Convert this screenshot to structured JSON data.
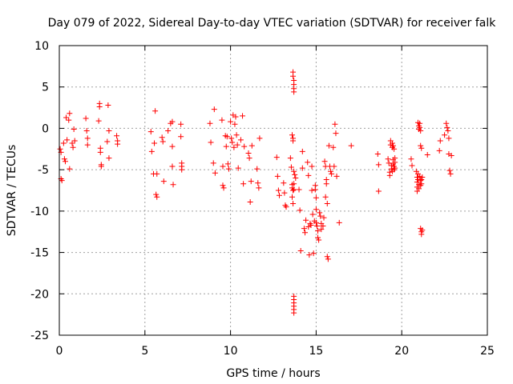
{
  "chart_data": {
    "type": "scatter",
    "title": "Day 079 of 2022, Sidereal Day-to-day VTEC variation (SDTVAR) for receiver falk",
    "xlabel": "GPS time / hours",
    "ylabel": "SDTVAR / TECUs",
    "xlim": [
      0,
      25
    ],
    "ylim": [
      -25,
      10
    ],
    "xticks": [
      0,
      5,
      10,
      15,
      20,
      25
    ],
    "yticks": [
      10,
      5,
      0,
      -5,
      -10,
      -15,
      -20,
      -25
    ],
    "xtick_labels": [
      "0",
      "5",
      "10",
      "15",
      "20",
      "25"
    ],
    "ytick_labels": [
      "10",
      "5",
      "0",
      "-5",
      "-10",
      "-15",
      "-20",
      "-25"
    ],
    "grid": true,
    "marker": "+",
    "series_color": "#ff0000",
    "points": [
      [
        0.05,
        -2.5
      ],
      [
        0.1,
        -2.9
      ],
      [
        0.1,
        -6.1
      ],
      [
        0.15,
        -6.3
      ],
      [
        0.25,
        -1.8
      ],
      [
        0.3,
        -3.7
      ],
      [
        0.35,
        -4.0
      ],
      [
        0.4,
        1.3
      ],
      [
        0.45,
        -1.4
      ],
      [
        0.55,
        1.0
      ],
      [
        0.6,
        1.8
      ],
      [
        0.6,
        -4.9
      ],
      [
        0.75,
        -1.8
      ],
      [
        0.8,
        -2.3
      ],
      [
        0.85,
        -0.1
      ],
      [
        0.9,
        -1.5
      ],
      [
        1.55,
        1.2
      ],
      [
        1.6,
        -0.3
      ],
      [
        1.65,
        -1.2
      ],
      [
        1.65,
        -2.0
      ],
      [
        2.3,
        0.9
      ],
      [
        2.35,
        2.6
      ],
      [
        2.35,
        3.0
      ],
      [
        2.4,
        -2.4
      ],
      [
        2.4,
        -2.9
      ],
      [
        2.45,
        -4.4
      ],
      [
        2.45,
        -4.6
      ],
      [
        2.8,
        -1.6
      ],
      [
        2.85,
        2.8
      ],
      [
        2.9,
        -0.3
      ],
      [
        2.9,
        -3.6
      ],
      [
        3.35,
        -0.9
      ],
      [
        3.4,
        -1.5
      ],
      [
        3.4,
        -1.9
      ],
      [
        5.35,
        -0.4
      ],
      [
        5.4,
        -2.8
      ],
      [
        5.5,
        -5.5
      ],
      [
        5.55,
        -1.8
      ],
      [
        5.6,
        2.1
      ],
      [
        5.65,
        -8.0
      ],
      [
        5.7,
        -8.3
      ],
      [
        5.7,
        -5.5
      ],
      [
        6.0,
        -1.1
      ],
      [
        6.05,
        -1.6
      ],
      [
        6.1,
        -6.4
      ],
      [
        6.35,
        -0.3
      ],
      [
        6.5,
        0.6
      ],
      [
        6.6,
        0.8
      ],
      [
        6.6,
        -2.2
      ],
      [
        6.6,
        -4.6
      ],
      [
        6.65,
        -6.8
      ],
      [
        7.1,
        0.5
      ],
      [
        7.1,
        -1.0
      ],
      [
        7.15,
        -4.2
      ],
      [
        7.15,
        -4.6
      ],
      [
        7.15,
        -5.0
      ],
      [
        8.8,
        0.6
      ],
      [
        8.85,
        -1.7
      ],
      [
        9.0,
        -4.2
      ],
      [
        9.05,
        2.3
      ],
      [
        9.1,
        -5.4
      ],
      [
        9.5,
        1.0
      ],
      [
        9.55,
        -4.6
      ],
      [
        9.55,
        -6.9
      ],
      [
        9.6,
        -7.2
      ],
      [
        9.7,
        -0.9
      ],
      [
        9.75,
        -2.2
      ],
      [
        9.8,
        -1.0
      ],
      [
        9.85,
        -4.3
      ],
      [
        9.9,
        -4.9
      ],
      [
        10.0,
        0.8
      ],
      [
        10.05,
        -1.2
      ],
      [
        10.1,
        -1.7
      ],
      [
        10.15,
        1.6
      ],
      [
        10.2,
        -2.3
      ],
      [
        10.25,
        0.5
      ],
      [
        10.3,
        1.4
      ],
      [
        10.35,
        -0.8
      ],
      [
        10.4,
        -2.0
      ],
      [
        10.45,
        -4.8
      ],
      [
        10.6,
        -1.4
      ],
      [
        10.7,
        1.5
      ],
      [
        10.75,
        -6.7
      ],
      [
        10.8,
        -2.2
      ],
      [
        11.05,
        -3.0
      ],
      [
        11.1,
        -3.6
      ],
      [
        11.15,
        -8.9
      ],
      [
        11.2,
        -6.4
      ],
      [
        11.25,
        -2.1
      ],
      [
        11.55,
        -4.9
      ],
      [
        11.6,
        -6.6
      ],
      [
        11.65,
        -7.2
      ],
      [
        11.7,
        -1.2
      ],
      [
        12.7,
        -3.5
      ],
      [
        12.75,
        -5.8
      ],
      [
        12.8,
        -7.5
      ],
      [
        12.85,
        -8.1
      ],
      [
        13.1,
        -6.6
      ],
      [
        13.15,
        -7.8
      ],
      [
        13.2,
        -9.3
      ],
      [
        13.25,
        -9.5
      ],
      [
        13.5,
        -3.6
      ],
      [
        13.55,
        -4.7
      ],
      [
        13.6,
        -6.8
      ],
      [
        13.6,
        -7.2
      ],
      [
        13.6,
        -8.3
      ],
      [
        13.65,
        -9.1
      ],
      [
        13.65,
        -7.5
      ],
      [
        13.6,
        -0.8
      ],
      [
        13.65,
        -1.2
      ],
      [
        13.65,
        -1.5
      ],
      [
        13.7,
        -5.2
      ],
      [
        13.7,
        -6.7
      ],
      [
        13.7,
        -7.4
      ],
      [
        13.7,
        -20.3
      ],
      [
        13.7,
        -20.7
      ],
      [
        13.7,
        -21.1
      ],
      [
        13.7,
        -21.5
      ],
      [
        13.7,
        -21.9
      ],
      [
        13.7,
        -22.3
      ],
      [
        13.65,
        6.8
      ],
      [
        13.65,
        6.3
      ],
      [
        13.7,
        5.8
      ],
      [
        13.7,
        5.3
      ],
      [
        13.7,
        4.8
      ],
      [
        13.7,
        4.4
      ],
      [
        13.75,
        -5.6
      ],
      [
        13.8,
        -6.0
      ],
      [
        14.0,
        -7.4
      ],
      [
        14.05,
        -9.9
      ],
      [
        14.1,
        -14.8
      ],
      [
        14.2,
        -2.8
      ],
      [
        14.2,
        -4.8
      ],
      [
        14.3,
        -12.1
      ],
      [
        14.35,
        -12.6
      ],
      [
        14.4,
        -11.1
      ],
      [
        14.5,
        -4.1
      ],
      [
        14.55,
        -5.7
      ],
      [
        14.55,
        -11.9
      ],
      [
        14.6,
        -15.3
      ],
      [
        14.65,
        -11.5
      ],
      [
        14.7,
        -11.7
      ],
      [
        14.75,
        -4.6
      ],
      [
        14.75,
        -7.5
      ],
      [
        14.8,
        -10.4
      ],
      [
        14.85,
        -15.1
      ],
      [
        14.9,
        -11.2
      ],
      [
        14.95,
        -6.9
      ],
      [
        14.95,
        -7.4
      ],
      [
        15.0,
        -8.4
      ],
      [
        15.0,
        -9.8
      ],
      [
        15.0,
        -11.4
      ],
      [
        15.05,
        -11.8
      ],
      [
        15.1,
        -12.4
      ],
      [
        15.1,
        -13.2
      ],
      [
        15.15,
        -13.5
      ],
      [
        15.2,
        -10.2
      ],
      [
        15.25,
        -10.6
      ],
      [
        15.3,
        -11.5
      ],
      [
        15.3,
        -12.2
      ],
      [
        15.4,
        -11.8
      ],
      [
        15.45,
        -10.8
      ],
      [
        15.5,
        -4.0
      ],
      [
        15.55,
        -4.6
      ],
      [
        15.55,
        -8.3
      ],
      [
        15.6,
        -6.2
      ],
      [
        15.6,
        -6.7
      ],
      [
        15.65,
        -9.1
      ],
      [
        15.65,
        -15.5
      ],
      [
        15.7,
        -15.8
      ],
      [
        15.75,
        -2.1
      ],
      [
        15.8,
        -4.6
      ],
      [
        15.85,
        -5.2
      ],
      [
        15.9,
        -5.5
      ],
      [
        16.0,
        -2.3
      ],
      [
        16.05,
        -4.6
      ],
      [
        16.1,
        0.5
      ],
      [
        16.15,
        -0.6
      ],
      [
        16.2,
        -5.8
      ],
      [
        16.35,
        -11.4
      ],
      [
        17.05,
        -2.1
      ],
      [
        18.6,
        -3.1
      ],
      [
        18.65,
        -4.4
      ],
      [
        18.65,
        -7.6
      ],
      [
        19.2,
        -3.7
      ],
      [
        19.25,
        -4.2
      ],
      [
        19.3,
        -5.3
      ],
      [
        19.3,
        -5.7
      ],
      [
        19.35,
        -1.5
      ],
      [
        19.35,
        -2.0
      ],
      [
        19.4,
        -4.5
      ],
      [
        19.4,
        -4.9
      ],
      [
        19.45,
        -5.2
      ],
      [
        19.45,
        -1.8
      ],
      [
        19.45,
        -2.3
      ],
      [
        19.5,
        -3.8
      ],
      [
        19.5,
        -4.3
      ],
      [
        19.55,
        -4.6
      ],
      [
        19.55,
        -5.0
      ],
      [
        19.5,
        -2.1
      ],
      [
        19.55,
        -2.5
      ],
      [
        19.6,
        -3.6
      ],
      [
        19.6,
        -4.1
      ],
      [
        19.6,
        -4.8
      ],
      [
        20.55,
        -3.7
      ],
      [
        20.6,
        -4.5
      ],
      [
        20.85,
        -5.2
      ],
      [
        20.9,
        -5.9
      ],
      [
        20.9,
        -6.5
      ],
      [
        20.9,
        -7.1
      ],
      [
        20.9,
        -7.6
      ],
      [
        20.95,
        -5.5
      ],
      [
        20.95,
        -6.2
      ],
      [
        21.0,
        -6.8
      ],
      [
        21.0,
        -7.3
      ],
      [
        20.95,
        0.7
      ],
      [
        21.0,
        0.3
      ],
      [
        21.0,
        -0.1
      ],
      [
        21.05,
        0.6
      ],
      [
        21.05,
        0.1
      ],
      [
        21.1,
        -0.3
      ],
      [
        21.05,
        -5.8
      ],
      [
        21.1,
        -6.3
      ],
      [
        21.1,
        -6.9
      ],
      [
        21.15,
        -6.2
      ],
      [
        21.15,
        -6.7
      ],
      [
        21.2,
        -5.9
      ],
      [
        21.1,
        -12.1
      ],
      [
        21.15,
        -12.5
      ],
      [
        21.15,
        -12.8
      ],
      [
        21.2,
        -12.3
      ],
      [
        21.1,
        -2.1
      ],
      [
        21.15,
        -2.4
      ],
      [
        21.5,
        -3.2
      ],
      [
        22.2,
        -2.7
      ],
      [
        22.25,
        -1.5
      ],
      [
        22.5,
        -0.8
      ],
      [
        22.6,
        0.6
      ],
      [
        22.65,
        0.1
      ],
      [
        22.7,
        -0.3
      ],
      [
        22.75,
        -1.2
      ],
      [
        22.75,
        -3.1
      ],
      [
        22.8,
        -5.1
      ],
      [
        22.85,
        -5.5
      ],
      [
        22.9,
        -3.3
      ]
    ]
  }
}
